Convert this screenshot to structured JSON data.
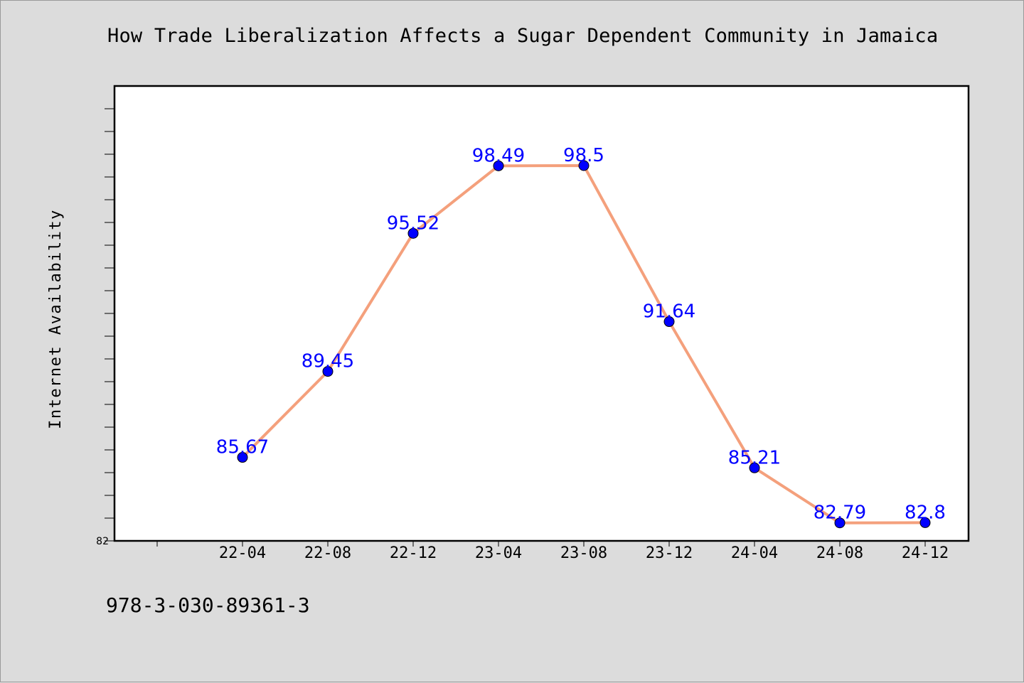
{
  "chart_data": {
    "type": "line",
    "title": "How Trade Liberalization Affects a Sugar Dependent Community in Jamaica",
    "xlabel": "",
    "ylabel": "Internet Availability",
    "categories": [
      "22-04",
      "22-08",
      "22-12",
      "23-04",
      "23-08",
      "23-12",
      "24-04",
      "24-08",
      "24-12"
    ],
    "series": [
      {
        "values": [
          85.67,
          89.45,
          95.52,
          98.49,
          98.5,
          91.64,
          85.21,
          82.79,
          82.8
        ],
        "labels": [
          "85.67",
          "89.45",
          "95.52",
          "98.49",
          "98.5",
          "91.64",
          "85.21",
          "82.79",
          "82.8"
        ],
        "line_color": "#f4a07c",
        "marker_color": "#0000ff",
        "label_color": "#0000ff"
      }
    ],
    "ylim": [
      82,
      102
    ],
    "y_tick_labels": [
      "82"
    ],
    "grid": false,
    "legend": "none"
  },
  "footer_text": "978-3-030-89361-3",
  "colors": {
    "background": "#dcdcdc",
    "plot_background": "#ffffff",
    "axis": "#000000"
  }
}
